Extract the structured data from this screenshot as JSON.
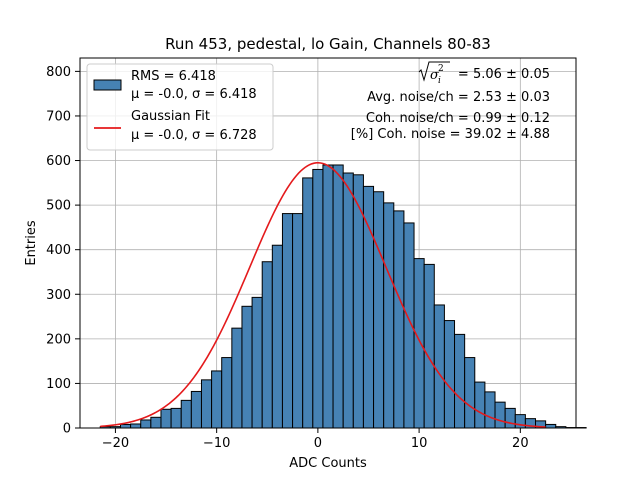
{
  "chart_data": {
    "type": "bar",
    "title": "Run 453, pedestal, lo Gain, Channels 80-83",
    "xlabel": "ADC Counts",
    "ylabel": "Entries",
    "xlim": [
      -23.5,
      25.5
    ],
    "ylim": [
      0,
      830
    ],
    "xticks": [
      -20,
      -10,
      0,
      10,
      20
    ],
    "yticks": [
      0,
      100,
      200,
      300,
      400,
      500,
      600,
      700,
      800
    ],
    "xtick_labels": [
      "−20",
      "−10",
      "0",
      "10",
      "20"
    ],
    "ytick_labels": [
      "0",
      "100",
      "200",
      "300",
      "400",
      "500",
      "600",
      "700",
      "800"
    ],
    "grid": true,
    "histogram": {
      "name": "RMS = 6.418",
      "stats": "μ = -0.0, σ = 6.418",
      "color": "#4682b4",
      "edge_color": "#000000",
      "bin_start": -21.5,
      "bin_width": 1,
      "counts": [
        3,
        3,
        8,
        9,
        18,
        24,
        42,
        44,
        62,
        82,
        108,
        128,
        158,
        224,
        273,
        293,
        373,
        410,
        481,
        481,
        561,
        580,
        590,
        590,
        572,
        568,
        542,
        530,
        505,
        487,
        460,
        380,
        367,
        276,
        241,
        210,
        158,
        103,
        81,
        58,
        44,
        30,
        21,
        16,
        8,
        3,
        1,
        1
      ]
    },
    "fit": {
      "name": "Gaussian Fit",
      "stats": "μ = -0.0, σ = 6.728",
      "color": "#e41a1c",
      "mu": 0.0,
      "sigma": 6.728,
      "amplitude": 595,
      "x_range": [
        -21.5,
        22.5
      ]
    },
    "legend_location": "top-left",
    "annotations": {
      "sigma_label": "= 5.06 ± 0.05",
      "avg_noise": "Avg. noise/ch = 2.53 ± 0.03",
      "coh_noise": "Coh. noise/ch = 0.99 ± 0.12",
      "coh_pct": "[%] Coh. noise = 39.02 ± 4.88"
    }
  }
}
